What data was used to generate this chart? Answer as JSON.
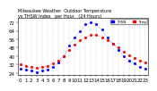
{
  "title": "Milwaukee Weather Outdoor Temperature\nvs THSW Index\nper Hour\n(24 Hours)",
  "bg_color": "#ffffff",
  "plot_bg_color": "#ffffff",
  "grid_color": "#aaaaaa",
  "hours": [
    0,
    1,
    2,
    3,
    4,
    5,
    6,
    7,
    8,
    9,
    10,
    11,
    12,
    13,
    14,
    15,
    16,
    17,
    18,
    19,
    20,
    21,
    22,
    23
  ],
  "temp": [
    32,
    31,
    30,
    29,
    30,
    31,
    33,
    36,
    40,
    46,
    51,
    55,
    58,
    60,
    60,
    58,
    55,
    52,
    48,
    44,
    41,
    38,
    36,
    34
  ],
  "thsw": [
    28,
    27,
    26,
    25,
    26,
    27,
    30,
    34,
    40,
    50,
    58,
    64,
    70,
    72,
    70,
    65,
    58,
    52,
    46,
    40,
    36,
    33,
    30,
    28
  ],
  "temp_color": "#ff0000",
  "thsw_color": "#0000ff",
  "legend_temp": "Temp",
  "legend_thsw": "THSW",
  "ylabel_right_values": [
    72,
    64,
    56,
    48,
    40,
    32,
    24
  ],
  "ylim": [
    22,
    76
  ],
  "xlim": [
    -0.5,
    23.5
  ],
  "tick_label_size": 4,
  "title_fontsize": 3.5
}
